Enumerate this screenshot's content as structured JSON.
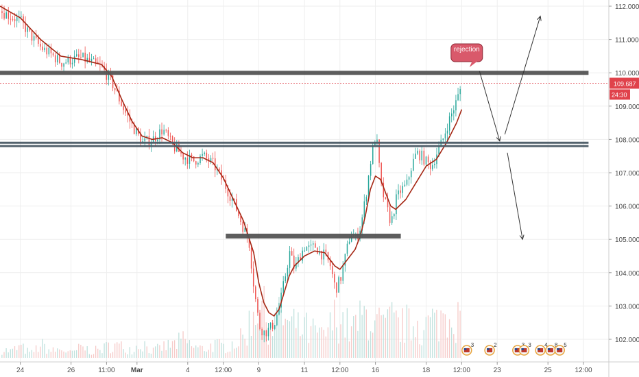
{
  "chart_data": {
    "type": "candlestick",
    "ylim": [
      101.6,
      112.2
    ],
    "y_ticks": [
      102.0,
      103.0,
      104.0,
      105.0,
      106.0,
      107.0,
      108.0,
      109.0,
      110.0,
      111.0,
      112.0
    ],
    "y_tick_labels": [
      "102.000",
      "103.000",
      "104.000",
      "105.000",
      "106.000",
      "107.000",
      "108.000",
      "109.000",
      "110.000",
      "111.000",
      "112.000"
    ],
    "x_range": [
      0,
      120
    ],
    "x_ticks": [
      {
        "label": "24",
        "x": 4,
        "bold": false
      },
      {
        "label": "26",
        "x": 14,
        "bold": false
      },
      {
        "label": "11:00",
        "x": 21,
        "bold": false
      },
      {
        "label": "Mar",
        "x": 27,
        "bold": true
      },
      {
        "label": "4",
        "x": 37,
        "bold": false
      },
      {
        "label": "12:00",
        "x": 44,
        "bold": false
      },
      {
        "label": "9",
        "x": 51,
        "bold": false
      },
      {
        "label": "11",
        "x": 60,
        "bold": false
      },
      {
        "label": "12:00",
        "x": 67,
        "bold": false
      },
      {
        "label": "16",
        "x": 74,
        "bold": false
      },
      {
        "label": "18",
        "x": 84,
        "bold": false
      },
      {
        "label": "12:00",
        "x": 91,
        "bold": false
      },
      {
        "label": "23",
        "x": 98,
        "bold": false
      },
      {
        "label": "25",
        "x": 108,
        "bold": false
      },
      {
        "label": "12:00",
        "x": 115,
        "bold": false
      }
    ],
    "price_path": [
      [
        0,
        111.85
      ],
      [
        2,
        111.7
      ],
      [
        4,
        111.55
      ],
      [
        6,
        111.1
      ],
      [
        8,
        110.75
      ],
      [
        10,
        110.55
      ],
      [
        12,
        110.3
      ],
      [
        14,
        110.4
      ],
      [
        16,
        110.45
      ],
      [
        18,
        110.3
      ],
      [
        20,
        110.15
      ],
      [
        22,
        109.7
      ],
      [
        24,
        109.0
      ],
      [
        26,
        108.4
      ],
      [
        28,
        107.9
      ],
      [
        30,
        108.0
      ],
      [
        32,
        108.3
      ],
      [
        34,
        107.8
      ],
      [
        36,
        107.5
      ],
      [
        38,
        107.35
      ],
      [
        40,
        107.5
      ],
      [
        42,
        107.25
      ],
      [
        44,
        106.7
      ],
      [
        46,
        106.1
      ],
      [
        48,
        105.3
      ],
      [
        49,
        104.9
      ],
      [
        50,
        103.5
      ],
      [
        51,
        102.4
      ],
      [
        52,
        102.2
      ],
      [
        53,
        102.3
      ],
      [
        54,
        102.5
      ],
      [
        55,
        103.0
      ],
      [
        56,
        103.8
      ],
      [
        57,
        104.6
      ],
      [
        58,
        104.1
      ],
      [
        59,
        104.5
      ],
      [
        60,
        104.8
      ],
      [
        61,
        104.7
      ],
      [
        62,
        104.8
      ],
      [
        63,
        104.6
      ],
      [
        64,
        104.5
      ],
      [
        65,
        104.2
      ],
      [
        66,
        103.5
      ],
      [
        67,
        103.8
      ],
      [
        68,
        104.5
      ],
      [
        69,
        105.2
      ],
      [
        70,
        105.0
      ],
      [
        71,
        105.4
      ],
      [
        72,
        106.3
      ],
      [
        73,
        107.4
      ],
      [
        74,
        108.2
      ],
      [
        75,
        106.6
      ],
      [
        76,
        106.0
      ],
      [
        77,
        105.5
      ],
      [
        78,
        106.2
      ],
      [
        79,
        106.5
      ],
      [
        80,
        106.6
      ],
      [
        81,
        107.2
      ],
      [
        82,
        107.6
      ],
      [
        83,
        107.5
      ],
      [
        84,
        107.3
      ],
      [
        85,
        107.2
      ],
      [
        86,
        107.6
      ],
      [
        87,
        107.9
      ],
      [
        88,
        108.4
      ],
      [
        89,
        108.8
      ],
      [
        90,
        109.2
      ],
      [
        91,
        109.7
      ]
    ],
    "moving_average": [
      [
        0,
        112.0
      ],
      [
        4,
        111.65
      ],
      [
        8,
        111.0
      ],
      [
        12,
        110.5
      ],
      [
        16,
        110.4
      ],
      [
        20,
        110.25
      ],
      [
        22,
        109.9
      ],
      [
        24,
        109.2
      ],
      [
        26,
        108.55
      ],
      [
        28,
        108.1
      ],
      [
        30,
        108.0
      ],
      [
        32,
        108.05
      ],
      [
        34,
        107.9
      ],
      [
        36,
        107.6
      ],
      [
        38,
        107.45
      ],
      [
        40,
        107.45
      ],
      [
        42,
        107.3
      ],
      [
        44,
        106.85
      ],
      [
        46,
        106.2
      ],
      [
        48,
        105.55
      ],
      [
        50,
        104.6
      ],
      [
        51,
        103.7
      ],
      [
        52,
        103.1
      ],
      [
        53,
        102.8
      ],
      [
        54,
        102.7
      ],
      [
        55,
        102.9
      ],
      [
        56,
        103.4
      ],
      [
        57,
        103.9
      ],
      [
        58,
        104.2
      ],
      [
        60,
        104.5
      ],
      [
        62,
        104.65
      ],
      [
        64,
        104.6
      ],
      [
        66,
        104.2
      ],
      [
        67,
        104.1
      ],
      [
        68,
        104.3
      ],
      [
        70,
        104.7
      ],
      [
        71,
        105.1
      ],
      [
        72,
        105.7
      ],
      [
        73,
        106.5
      ],
      [
        74,
        106.9
      ],
      [
        75,
        106.8
      ],
      [
        76,
        106.4
      ],
      [
        77,
        106.0
      ],
      [
        78,
        105.9
      ],
      [
        80,
        106.2
      ],
      [
        82,
        106.7
      ],
      [
        84,
        107.2
      ],
      [
        86,
        107.4
      ],
      [
        88,
        107.9
      ],
      [
        90,
        108.5
      ],
      [
        91,
        108.9
      ]
    ],
    "volume": [
      [
        0,
        0.4
      ],
      [
        2,
        0.3
      ],
      [
        4,
        0.5
      ],
      [
        6,
        0.2
      ],
      [
        8,
        0.6
      ],
      [
        10,
        0.3
      ],
      [
        12,
        0.4
      ],
      [
        14,
        0.2
      ],
      [
        16,
        0.5
      ],
      [
        18,
        0.3
      ],
      [
        20,
        0.4
      ],
      [
        22,
        0.6
      ],
      [
        24,
        0.5
      ],
      [
        26,
        0.4
      ],
      [
        28,
        0.7
      ],
      [
        30,
        0.3
      ],
      [
        32,
        0.5
      ],
      [
        34,
        0.6
      ],
      [
        36,
        0.8
      ],
      [
        38,
        0.5
      ],
      [
        40,
        0.4
      ],
      [
        42,
        0.6
      ],
      [
        44,
        0.5
      ],
      [
        46,
        0.7
      ],
      [
        48,
        0.9
      ],
      [
        50,
        2.2
      ],
      [
        51,
        3.0
      ],
      [
        52,
        2.0
      ],
      [
        53,
        1.6
      ],
      [
        54,
        1.5
      ],
      [
        55,
        1.8
      ],
      [
        56,
        1.9
      ],
      [
        57,
        1.4
      ],
      [
        58,
        1.6
      ],
      [
        59,
        1.2
      ],
      [
        60,
        1.5
      ],
      [
        61,
        1.0
      ],
      [
        62,
        1.3
      ],
      [
        63,
        0.9
      ],
      [
        64,
        1.1
      ],
      [
        65,
        1.4
      ],
      [
        66,
        1.9
      ],
      [
        67,
        1.8
      ],
      [
        68,
        1.6
      ],
      [
        69,
        1.2
      ],
      [
        70,
        1.5
      ],
      [
        71,
        1.7
      ],
      [
        72,
        2.0
      ],
      [
        73,
        1.9
      ],
      [
        74,
        1.4
      ],
      [
        75,
        1.6
      ],
      [
        76,
        1.3
      ],
      [
        77,
        1.8
      ],
      [
        78,
        1.5
      ],
      [
        79,
        1.4
      ],
      [
        80,
        1.6
      ],
      [
        81,
        1.3
      ],
      [
        82,
        1.9
      ],
      [
        83,
        1.2
      ],
      [
        84,
        1.5
      ],
      [
        85,
        1.7
      ],
      [
        86,
        1.6
      ],
      [
        87,
        1.9
      ],
      [
        88,
        2.1
      ],
      [
        89,
        2.3
      ],
      [
        90,
        1.8
      ],
      [
        91,
        1.5
      ]
    ],
    "horizontal_levels": [
      {
        "name": "resistance",
        "y": 110.0,
        "x_from": 0,
        "x_to": 116
      },
      {
        "name": "support-upper",
        "y": 107.9,
        "x_from": 0,
        "x_to": 116
      },
      {
        "name": "support-lower",
        "y": 107.8,
        "x_from": 0,
        "x_to": 116
      },
      {
        "name": "neckline",
        "y": 105.1,
        "x_from": 44.5,
        "x_to": 79
      }
    ],
    "last_price": {
      "value": 109.687,
      "label": "109.687",
      "countdown": "24:30",
      "color": "#e0424b"
    },
    "annotation": {
      "text": "rejection",
      "x": 92,
      "y": 110.6
    },
    "projection_arrows": [
      {
        "from": [
          94.5,
          110.05
        ],
        "to": [
          98.5,
          107.95
        ]
      },
      {
        "from": [
          99.5,
          108.15
        ],
        "to": [
          106.5,
          111.7
        ]
      },
      {
        "from": [
          100,
          107.6
        ],
        "to": [
          103,
          105.0
        ]
      }
    ],
    "event_markers": [
      {
        "x": 92,
        "count": "3"
      },
      {
        "x": 96.5,
        "count": "2"
      },
      {
        "x": 102,
        "count": "3"
      },
      {
        "x": 103.3,
        "count": "3"
      },
      {
        "x": 106.5,
        "count": "4"
      },
      {
        "x": 108.5,
        "count": "8"
      },
      {
        "x": 110.3,
        "count": "5"
      }
    ],
    "colors": {
      "up": "#26a69a",
      "down": "#ef5350",
      "ma": "#a52714",
      "level": "#555555",
      "support": "#4a5a66",
      "callout": "#d9596b",
      "grid": "#eeeeee"
    }
  }
}
